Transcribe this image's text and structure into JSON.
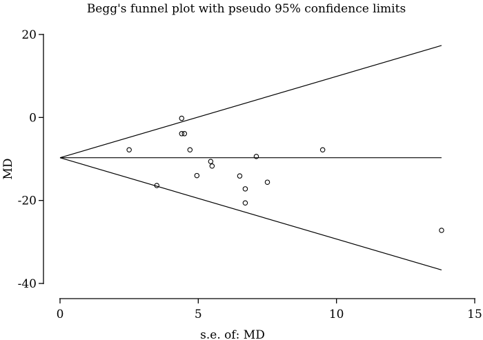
{
  "chart_data": {
    "type": "scatter",
    "title": "Begg's funnel plot with pseudo 95% confidence limits",
    "xlabel": "s.e. of: MD",
    "ylabel": "MD",
    "xlim": [
      0,
      15
    ],
    "ylim": [
      -40,
      20
    ],
    "xticks": [
      0,
      5,
      10,
      15
    ],
    "yticks": [
      -40,
      -20,
      0,
      20
    ],
    "grid": false,
    "pooled_estimate": -9.7,
    "ci_multiplier": 1.96,
    "ci_se_max": 13.8,
    "points": [
      {
        "x": 2.5,
        "y": -7.8
      },
      {
        "x": 3.5,
        "y": -16.4
      },
      {
        "x": 4.4,
        "y": -0.2
      },
      {
        "x": 4.4,
        "y": -3.9
      },
      {
        "x": 4.5,
        "y": -3.9
      },
      {
        "x": 4.7,
        "y": -7.8
      },
      {
        "x": 4.95,
        "y": -14.0
      },
      {
        "x": 5.45,
        "y": -10.6
      },
      {
        "x": 5.5,
        "y": -11.7
      },
      {
        "x": 6.5,
        "y": -14.1
      },
      {
        "x": 6.7,
        "y": -17.2
      },
      {
        "x": 6.7,
        "y": -20.6
      },
      {
        "x": 7.1,
        "y": -9.4
      },
      {
        "x": 7.5,
        "y": -15.6
      },
      {
        "x": 9.5,
        "y": -7.8
      },
      {
        "x": 13.8,
        "y": -27.2
      }
    ]
  }
}
